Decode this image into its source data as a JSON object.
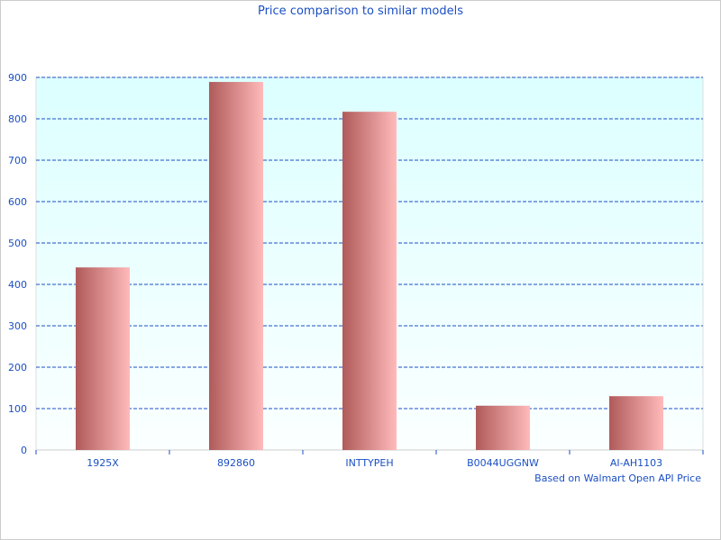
{
  "chart_data": {
    "type": "bar",
    "title": "Price comparison to similar models",
    "categories": [
      "1925X",
      "892860",
      "INTTYPEH",
      "B0044UGGNW",
      "AI-AH1103"
    ],
    "values": [
      441,
      889,
      817,
      107,
      130
    ],
    "ylim": [
      0,
      900
    ],
    "yticks": [
      0,
      100,
      200,
      300,
      400,
      500,
      600,
      700,
      800,
      900
    ],
    "grid": true,
    "footnote": "Based on Walmart Open API Price",
    "colors": {
      "bar_dark": "#b05a5a",
      "bar_light": "#ffbaba",
      "text": "#1a4fc4",
      "grid": "#1a4fc4",
      "plot_top": "#dcffff",
      "plot_bottom": "#fbffff"
    }
  }
}
